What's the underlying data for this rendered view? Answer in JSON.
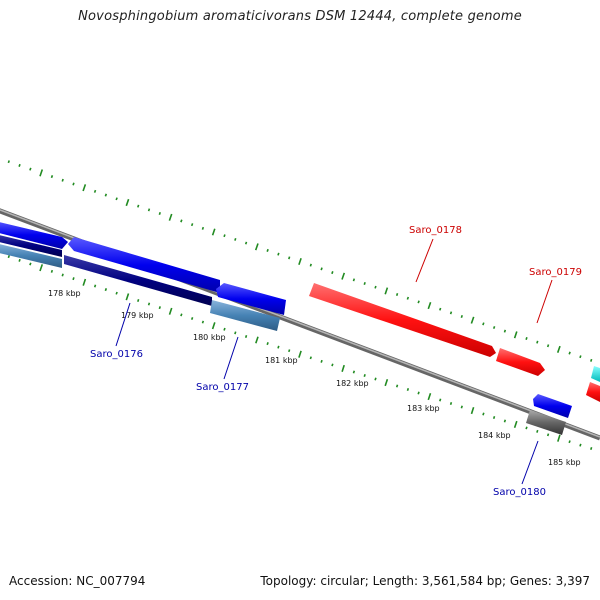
{
  "title": "Novosphingobium aromaticivorans DSM 12444, complete genome",
  "footer": {
    "accession": "Accession: NC_007794",
    "summary": "Topology: circular; Length: 3,561,584 bp; Genes: 3,397"
  },
  "kbp_ticks": [
    "178 kbp",
    "179 kbp",
    "180 kbp",
    "181 kbp",
    "182 kbp",
    "183 kbp",
    "184 kbp",
    "185 kbp"
  ],
  "gene_labels": {
    "saro0176": "Saro_0176",
    "saro0177": "Saro_0177",
    "saro0178": "Saro_0178",
    "saro0179": "Saro_0179",
    "saro0180": "Saro_0180"
  },
  "colors": {
    "forward_gene": "#0000ee",
    "reverse_gene": "#ff1111",
    "rna_gene": "#4682b4",
    "dark_gene": "#000080",
    "other_gene": "#555555",
    "tick": "#228b22",
    "backbone": "#808080",
    "label_blue": "#0000aa",
    "label_red": "#cc0000"
  }
}
